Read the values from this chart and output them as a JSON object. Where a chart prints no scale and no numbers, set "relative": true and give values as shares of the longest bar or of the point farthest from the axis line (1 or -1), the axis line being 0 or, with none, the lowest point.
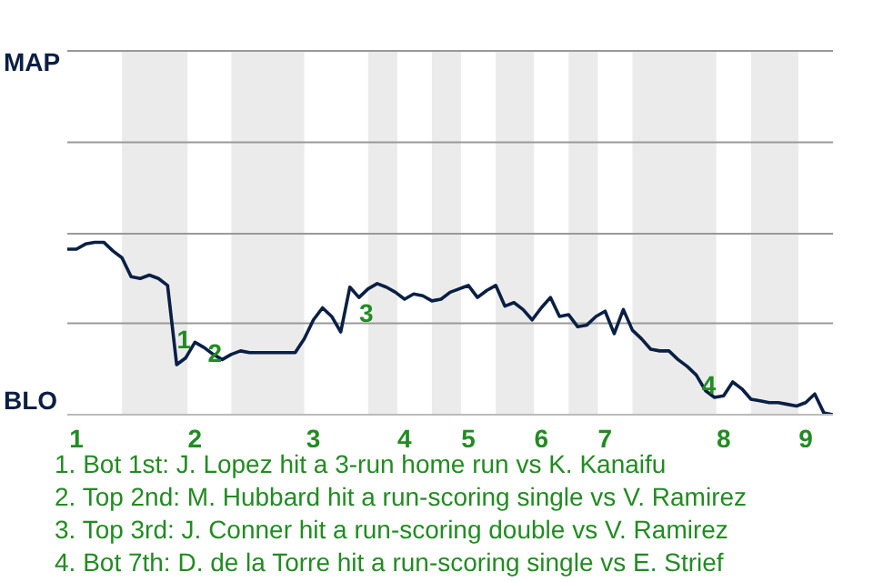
{
  "chart_data": {
    "type": "line",
    "relative": true,
    "categories": [
      null,
      "1",
      null,
      null,
      null,
      null,
      null,
      null,
      null,
      null,
      null,
      null,
      null,
      null,
      "2",
      null,
      null,
      null,
      null,
      null,
      null,
      null,
      null,
      null,
      null,
      null,
      null,
      "3",
      null,
      null,
      null,
      null,
      null,
      null,
      null,
      null,
      null,
      "4",
      null,
      null,
      null,
      null,
      null,
      null,
      "5",
      null,
      null,
      null,
      null,
      null,
      null,
      null,
      "6",
      null,
      null,
      null,
      null,
      null,
      null,
      "7",
      null,
      null,
      null,
      null,
      null,
      null,
      null,
      null,
      null,
      null,
      null,
      null,
      "8",
      null,
      null,
      null,
      null,
      null,
      null,
      null,
      null,
      "9",
      null,
      null,
      null
    ],
    "ref_lines": [
      {
        "axis": "y",
        "value": 0.53,
        "color": "#999999"
      },
      {
        "axis": "y",
        "value": 1.05,
        "color": "#999999"
      },
      {
        "axis": "y",
        "value": 1.58,
        "color": "#999999"
      },
      {
        "axis": "y",
        "value": 2.11,
        "color": "#999999"
      }
    ],
    "legend": false,
    "marker": "none",
    "line_style": "solid",
    "series": [
      {
        "color": "#0a1f44",
        "values": [
          0.96,
          0.96,
          0.99,
          1,
          1,
          0.95,
          0.91,
          0.8,
          0.79,
          0.81,
          0.79,
          0.75,
          0.29,
          0.33,
          0.42,
          0.39,
          0.35,
          0.32,
          0.35,
          0.37,
          0.36,
          0.36,
          0.36,
          0.36,
          0.36,
          0.36,
          0.44,
          0.55,
          0.62,
          0.57,
          0.48,
          0.74,
          0.68,
          0.73,
          0.76,
          0.74,
          0.71,
          0.67,
          0.7,
          0.69,
          0.66,
          0.67,
          0.71,
          0.73,
          0.75,
          0.68,
          0.72,
          0.75,
          0.63,
          0.65,
          0.61,
          0.55,
          0.62,
          0.68,
          0.57,
          0.58,
          0.51,
          0.52,
          0.57,
          0.6,
          0.47,
          0.61,
          0.49,
          0.44,
          0.38,
          0.37,
          0.37,
          0.32,
          0.28,
          0.23,
          0.14,
          0.1,
          0.11,
          0.19,
          0.15,
          0.09,
          0.08,
          0.07,
          0.07,
          0.06,
          0.05,
          0.07,
          0.12,
          0.01,
          0
        ]
      }
    ],
    "annotations": [
      "MAP",
      "BLO",
      "1",
      "2",
      "3",
      "4",
      "1. Bot 1st: J. Lopez hit a 3-run home run vs K. Kanaifu",
      "2. Top 2nd: M. Hubbard hit a run-scoring single vs V. Ramirez",
      "3. Top 3rd: J. Conner hit a run-scoring double vs V. Ramirez",
      "4. Bot 7th: D. de la Torre hit a run-scoring single vs E. Strief"
    ]
  }
}
